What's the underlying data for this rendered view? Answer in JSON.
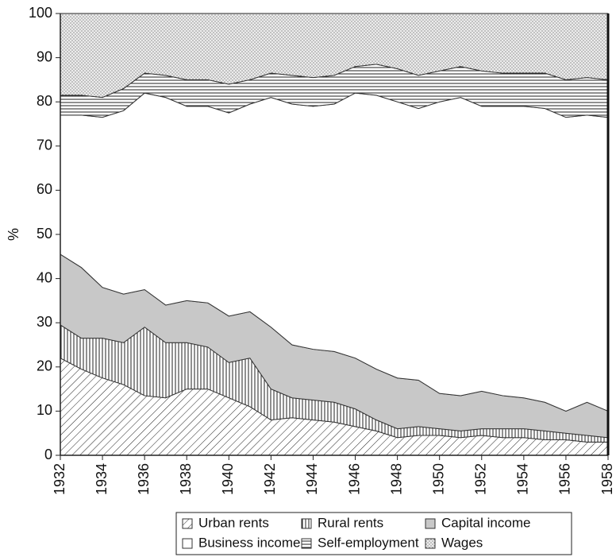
{
  "chart_data": {
    "type": "stacked_area",
    "y_label": "%",
    "x": [
      1932,
      1933,
      1934,
      1935,
      1936,
      1937,
      1938,
      1939,
      1940,
      1941,
      1942,
      1943,
      1944,
      1945,
      1946,
      1947,
      1948,
      1949,
      1950,
      1951,
      1952,
      1953,
      1954,
      1955,
      1956,
      1957,
      1958
    ],
    "xlim": [
      1932,
      1958
    ],
    "xticks": [
      1932,
      1934,
      1936,
      1938,
      1940,
      1942,
      1944,
      1946,
      1948,
      1950,
      1952,
      1954,
      1956,
      1958
    ],
    "ylim": [
      0,
      100
    ],
    "yticks": [
      0,
      10,
      20,
      30,
      40,
      50,
      60,
      70,
      80,
      90,
      100
    ],
    "series": [
      {
        "name": "Urban rents",
        "color": "#ffffff",
        "values": [
          22,
          19.5,
          17.5,
          16,
          13.5,
          13,
          15,
          15,
          13,
          11,
          8,
          8.5,
          8,
          7.5,
          6.5,
          5.5,
          4,
          4.5,
          4.5,
          4,
          4.5,
          4,
          4,
          3.5,
          3.5,
          3,
          3
        ]
      },
      {
        "name": "Rural rents",
        "color": "#ffffff",
        "values": [
          7.5,
          7,
          9,
          9.5,
          15.5,
          12.5,
          10.5,
          9.5,
          8,
          11,
          7,
          4.5,
          4.5,
          4.5,
          4,
          2.5,
          2,
          2,
          1.5,
          1.5,
          1.5,
          2,
          2,
          2,
          1.5,
          1.5,
          1
        ]
      },
      {
        "name": "Capital income",
        "color": "#c8c8c8",
        "values": [
          16,
          16,
          11.5,
          11,
          8.5,
          8.5,
          9.5,
          10,
          10.5,
          10.5,
          14,
          12,
          11.5,
          11.5,
          11.5,
          11.5,
          11.5,
          10.5,
          8,
          8,
          8.5,
          7.5,
          7,
          6.5,
          5,
          7.5,
          6
        ]
      },
      {
        "name": "Business income",
        "color": "#ffffff",
        "values": [
          31.5,
          34.5,
          38.5,
          41.5,
          44.5,
          47,
          44,
          44.5,
          46,
          47,
          52,
          54.5,
          55,
          56,
          60,
          62,
          62.5,
          61.5,
          66,
          67.5,
          64.5,
          65.5,
          66,
          66.5,
          66.5,
          65,
          66.5
        ]
      },
      {
        "name": "Self-employment",
        "color": "#ffffff",
        "values": [
          4.5,
          4.5,
          4.5,
          5,
          4.5,
          5,
          6,
          6,
          6.5,
          5.5,
          5.5,
          6.5,
          6.5,
          6.5,
          6,
          7,
          7.5,
          7.5,
          7,
          7,
          8,
          7.5,
          7.5,
          8,
          8.5,
          8.5,
          8.5
        ]
      },
      {
        "name": "Wages",
        "color": "#ececec",
        "values": [
          18.5,
          18.5,
          19,
          17,
          13.5,
          14,
          15,
          15,
          16,
          15,
          13.5,
          14,
          14.5,
          14,
          12,
          11.5,
          12.5,
          14,
          13,
          12,
          13,
          13.5,
          13.5,
          13.5,
          15,
          14.5,
          15
        ]
      }
    ]
  }
}
